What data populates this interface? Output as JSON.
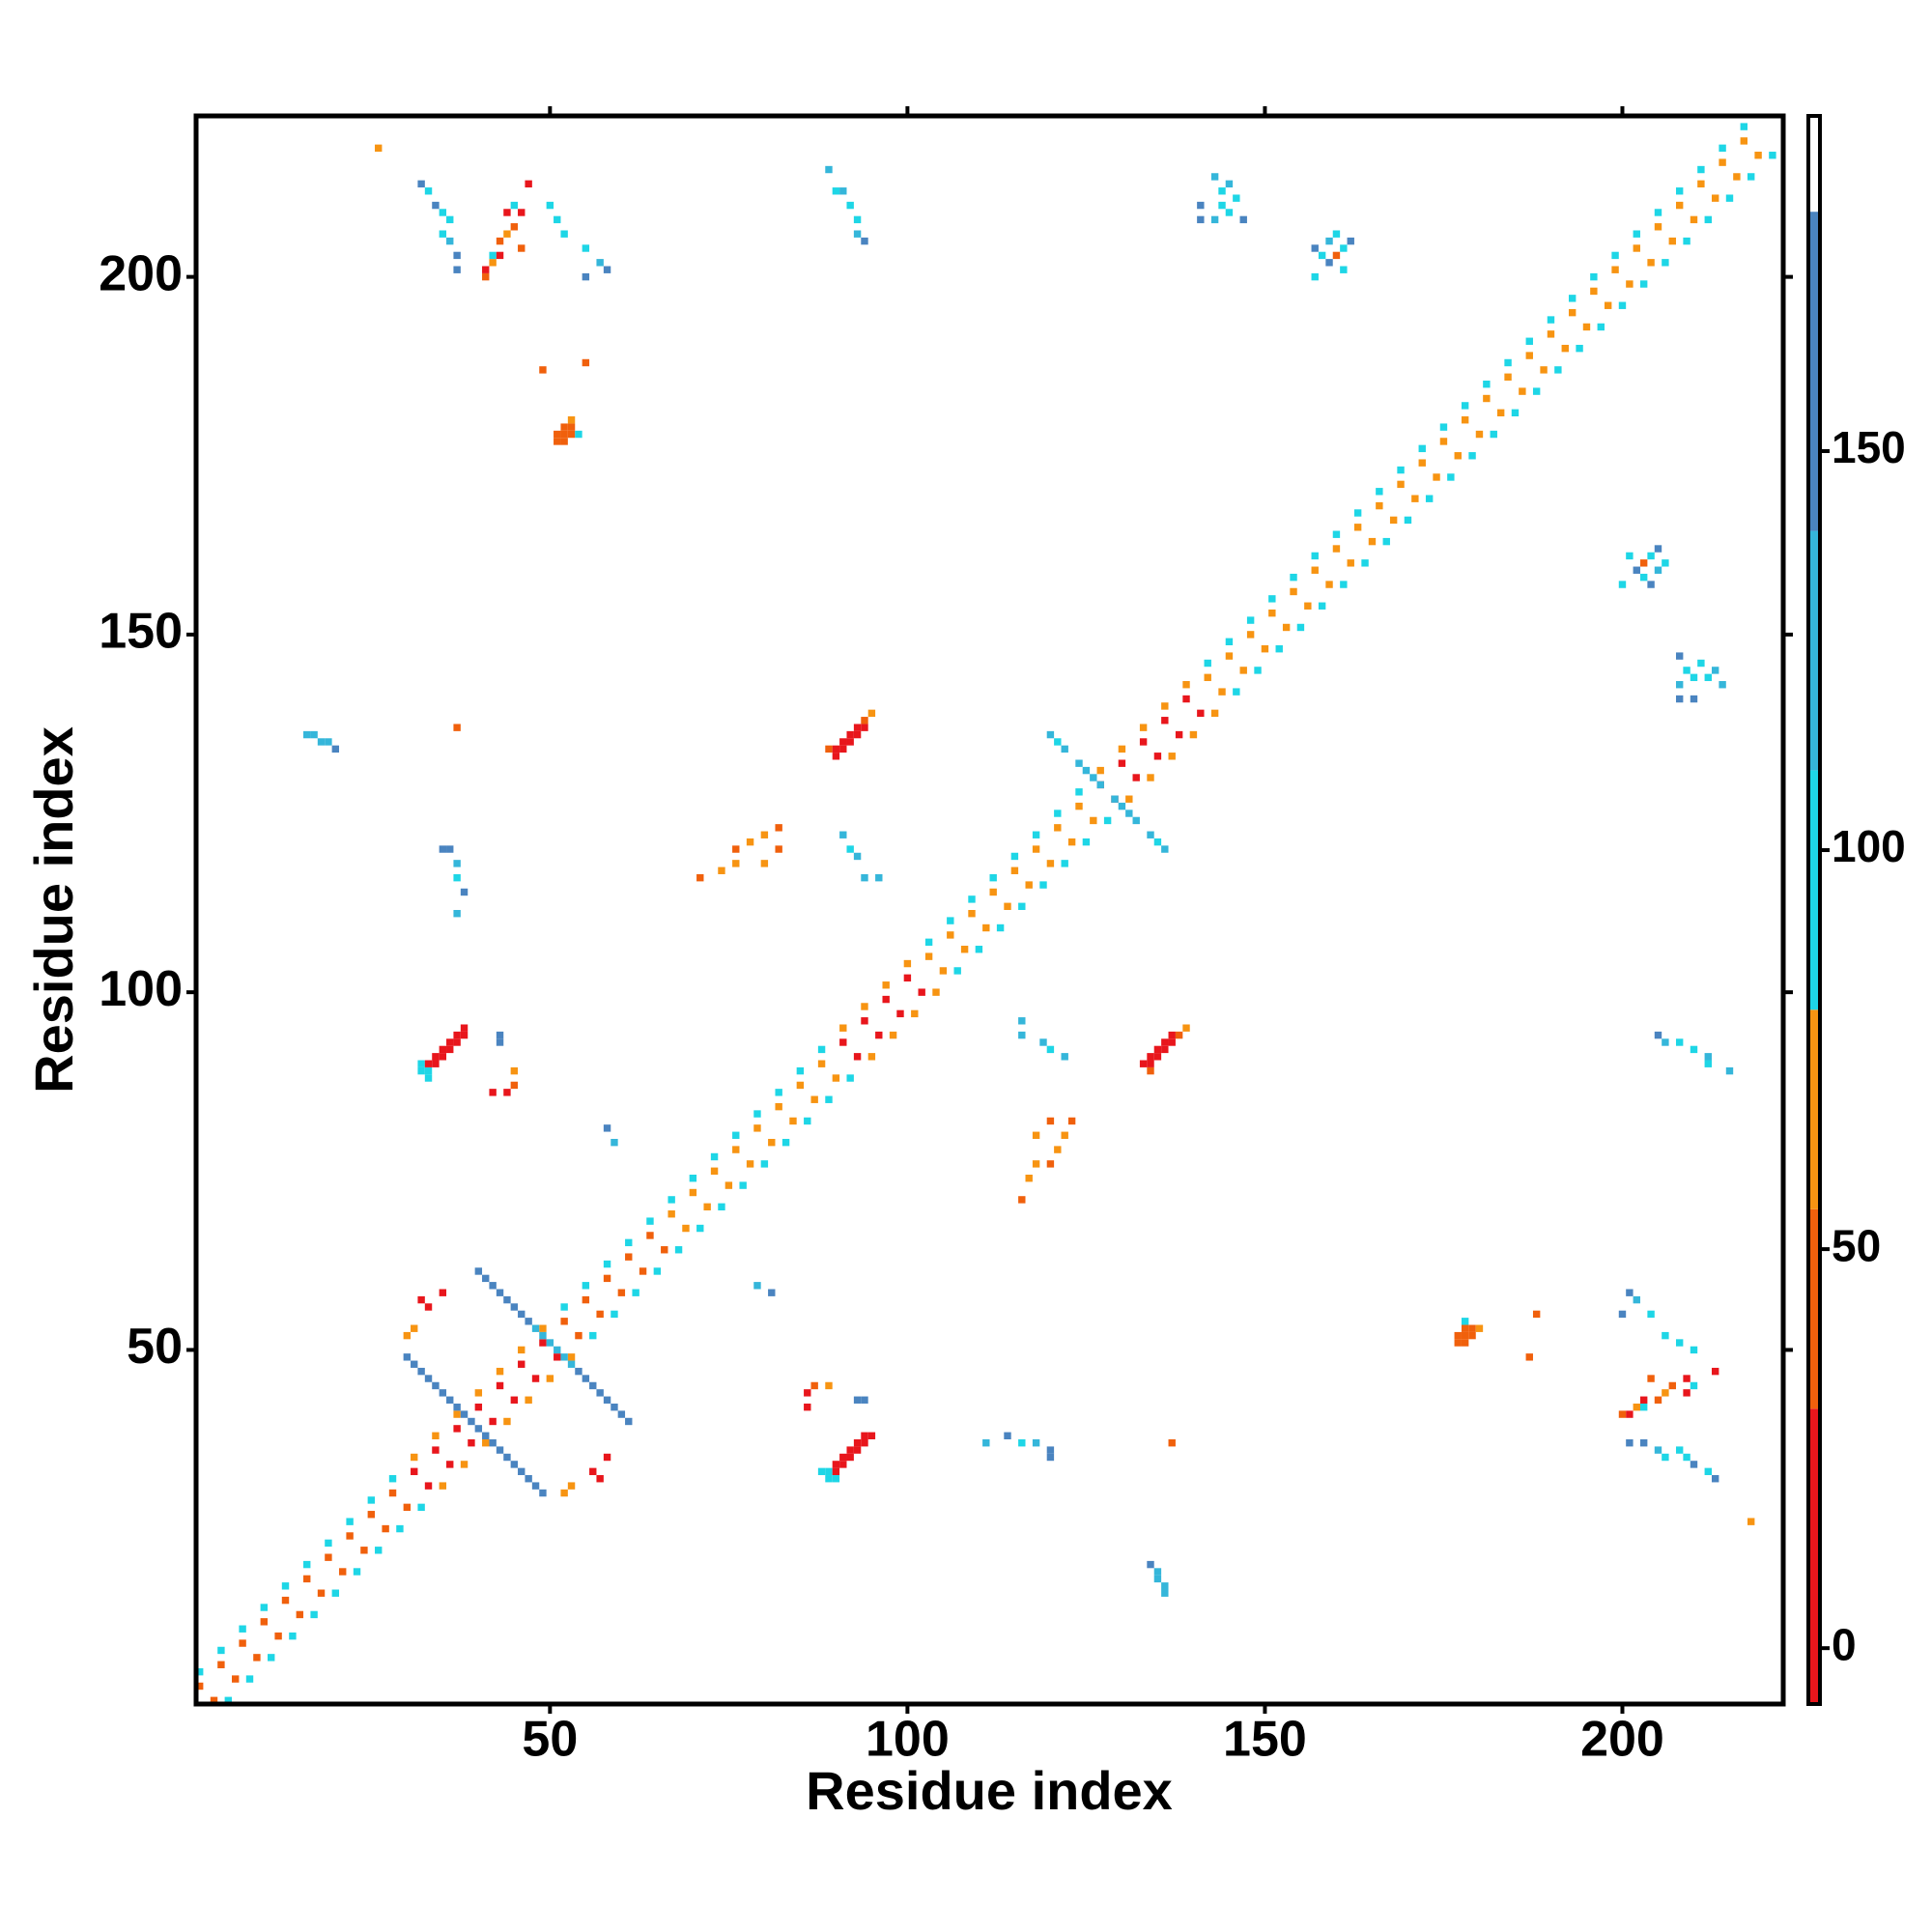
{
  "chart_data": {
    "type": "heatmap",
    "xlabel": "Residue index",
    "ylabel": "Residue index",
    "xlim": [
      0.5,
      222.5
    ],
    "ylim": [
      0.5,
      222.5
    ],
    "xticks": [
      50,
      100,
      150,
      200
    ],
    "yticks": [
      50,
      100,
      150,
      200
    ],
    "symmetric": true,
    "color_bins": [
      -7,
      30,
      55,
      80,
      110,
      140,
      180,
      192
    ],
    "colors": [
      "#e8161c",
      "#f0600c",
      "#f79412",
      "#1ed6e6",
      "#35b6da",
      "#4a84c0",
      "#ffffff"
    ],
    "colorbar_ticks": [
      0,
      50,
      100,
      150
    ],
    "cells": [
      [
        1,
        3,
        50
      ],
      [
        1,
        5,
        90
      ],
      [
        4,
        6,
        50
      ],
      [
        4,
        8,
        90
      ],
      [
        7,
        9,
        50
      ],
      [
        7,
        11,
        90
      ],
      [
        10,
        12,
        50
      ],
      [
        10,
        14,
        90
      ],
      [
        13,
        15,
        50
      ],
      [
        13,
        17,
        90
      ],
      [
        16,
        18,
        50
      ],
      [
        16,
        20,
        90
      ],
      [
        19,
        21,
        50
      ],
      [
        19,
        23,
        90
      ],
      [
        22,
        24,
        50
      ],
      [
        22,
        26,
        90
      ],
      [
        25,
        27,
        50
      ],
      [
        25,
        29,
        90
      ],
      [
        28,
        30,
        50
      ],
      [
        28,
        32,
        90
      ],
      [
        31,
        33,
        15
      ],
      [
        31,
        35,
        60
      ],
      [
        34,
        36,
        15
      ],
      [
        34,
        38,
        60
      ],
      [
        37,
        39,
        15
      ],
      [
        37,
        41,
        60
      ],
      [
        40,
        42,
        15
      ],
      [
        40,
        44,
        60
      ],
      [
        43,
        45,
        15
      ],
      [
        43,
        47,
        60
      ],
      [
        46,
        48,
        15
      ],
      [
        46,
        50,
        60
      ],
      [
        49,
        51,
        15
      ],
      [
        49,
        53,
        60
      ],
      [
        52,
        54,
        50
      ],
      [
        52,
        56,
        95
      ],
      [
        55,
        57,
        50
      ],
      [
        55,
        59,
        95
      ],
      [
        58,
        60,
        50
      ],
      [
        58,
        62,
        95
      ],
      [
        61,
        63,
        50
      ],
      [
        61,
        65,
        95
      ],
      [
        64,
        66,
        50
      ],
      [
        64,
        68,
        95
      ],
      [
        67,
        69,
        60
      ],
      [
        67,
        71,
        90
      ],
      [
        70,
        72,
        60
      ],
      [
        70,
        74,
        90
      ],
      [
        73,
        75,
        60
      ],
      [
        73,
        77,
        90
      ],
      [
        76,
        78,
        60
      ],
      [
        76,
        80,
        90
      ],
      [
        79,
        81,
        60
      ],
      [
        79,
        83,
        90
      ],
      [
        82,
        84,
        60
      ],
      [
        82,
        86,
        90
      ],
      [
        85,
        87,
        60
      ],
      [
        85,
        89,
        90
      ],
      [
        88,
        90,
        60
      ],
      [
        88,
        92,
        90
      ],
      [
        91,
        93,
        15
      ],
      [
        91,
        95,
        70
      ],
      [
        94,
        96,
        15
      ],
      [
        94,
        98,
        70
      ],
      [
        97,
        99,
        15
      ],
      [
        97,
        101,
        70
      ],
      [
        100,
        102,
        15
      ],
      [
        100,
        104,
        70
      ],
      [
        103,
        105,
        55
      ],
      [
        103,
        107,
        92
      ],
      [
        106,
        108,
        55
      ],
      [
        106,
        110,
        92
      ],
      [
        109,
        111,
        55
      ],
      [
        109,
        113,
        92
      ],
      [
        112,
        114,
        55
      ],
      [
        112,
        116,
        92
      ],
      [
        115,
        117,
        55
      ],
      [
        115,
        119,
        92
      ],
      [
        118,
        120,
        55
      ],
      [
        118,
        122,
        92
      ],
      [
        121,
        123,
        55
      ],
      [
        121,
        125,
        92
      ],
      [
        124,
        126,
        55
      ],
      [
        124,
        128,
        92
      ],
      [
        127,
        129,
        20
      ],
      [
        127,
        131,
        65
      ],
      [
        130,
        132,
        20
      ],
      [
        130,
        134,
        65
      ],
      [
        133,
        135,
        20
      ],
      [
        133,
        137,
        65
      ],
      [
        136,
        138,
        20
      ],
      [
        136,
        140,
        65
      ],
      [
        139,
        141,
        20
      ],
      [
        139,
        143,
        65
      ],
      [
        142,
        144,
        55
      ],
      [
        142,
        146,
        95
      ],
      [
        145,
        147,
        55
      ],
      [
        145,
        149,
        95
      ],
      [
        148,
        150,
        55
      ],
      [
        148,
        152,
        95
      ],
      [
        151,
        153,
        55
      ],
      [
        151,
        155,
        95
      ],
      [
        154,
        156,
        55
      ],
      [
        154,
        158,
        95
      ],
      [
        157,
        159,
        55
      ],
      [
        157,
        161,
        95
      ],
      [
        160,
        162,
        55
      ],
      [
        160,
        164,
        95
      ],
      [
        163,
        165,
        55
      ],
      [
        163,
        167,
        95
      ],
      [
        166,
        168,
        55
      ],
      [
        166,
        170,
        95
      ],
      [
        169,
        171,
        55
      ],
      [
        169,
        173,
        95
      ],
      [
        172,
        174,
        55
      ],
      [
        172,
        176,
        95
      ],
      [
        175,
        177,
        55
      ],
      [
        175,
        179,
        95
      ],
      [
        178,
        180,
        55
      ],
      [
        178,
        182,
        92
      ],
      [
        181,
        183,
        55
      ],
      [
        181,
        185,
        92
      ],
      [
        184,
        186,
        55
      ],
      [
        184,
        188,
        92
      ],
      [
        187,
        189,
        55
      ],
      [
        187,
        191,
        92
      ],
      [
        190,
        192,
        55
      ],
      [
        190,
        194,
        92
      ],
      [
        193,
        195,
        55
      ],
      [
        193,
        197,
        92
      ],
      [
        196,
        198,
        55
      ],
      [
        196,
        200,
        92
      ],
      [
        199,
        201,
        55
      ],
      [
        199,
        203,
        92
      ],
      [
        202,
        204,
        55
      ],
      [
        202,
        206,
        92
      ],
      [
        205,
        207,
        55
      ],
      [
        205,
        209,
        92
      ],
      [
        208,
        210,
        55
      ],
      [
        208,
        212,
        92
      ],
      [
        211,
        213,
        55
      ],
      [
        211,
        215,
        92
      ],
      [
        214,
        216,
        55
      ],
      [
        214,
        218,
        92
      ],
      [
        217,
        219,
        55
      ],
      [
        217,
        221,
        92
      ],
      [
        30,
        49,
        150
      ],
      [
        31,
        48,
        150
      ],
      [
        32,
        47,
        150
      ],
      [
        33,
        46,
        150
      ],
      [
        34,
        45,
        150
      ],
      [
        35,
        44,
        150
      ],
      [
        36,
        43,
        150
      ],
      [
        37,
        42,
        150
      ],
      [
        38,
        41,
        140
      ],
      [
        39,
        40,
        140
      ],
      [
        40,
        61,
        150
      ],
      [
        41,
        60,
        150
      ],
      [
        42,
        59,
        150
      ],
      [
        43,
        58,
        150
      ],
      [
        44,
        57,
        150
      ],
      [
        45,
        56,
        150
      ],
      [
        46,
        55,
        150
      ],
      [
        47,
        54,
        140
      ],
      [
        48,
        53,
        130
      ],
      [
        49,
        52,
        120
      ],
      [
        50,
        51,
        120
      ],
      [
        30,
        52,
        55
      ],
      [
        31,
        53,
        60
      ],
      [
        32,
        57,
        15
      ],
      [
        33,
        56,
        20
      ],
      [
        35,
        58,
        10
      ],
      [
        120,
        136,
        120
      ],
      [
        121,
        135,
        100
      ],
      [
        122,
        134,
        120
      ],
      [
        124,
        132,
        130
      ],
      [
        125,
        131,
        120
      ],
      [
        126,
        130,
        110
      ],
      [
        127,
        129,
        120
      ],
      [
        32,
        89,
        90
      ],
      [
        33,
        89,
        90
      ],
      [
        33,
        88,
        95
      ],
      [
        32,
        90,
        90
      ],
      [
        33,
        90,
        10
      ],
      [
        34,
        90,
        10
      ],
      [
        34,
        91,
        5
      ],
      [
        35,
        91,
        10
      ],
      [
        35,
        92,
        5
      ],
      [
        36,
        92,
        10
      ],
      [
        36,
        93,
        10
      ],
      [
        37,
        93,
        15
      ],
      [
        37,
        94,
        15
      ],
      [
        38,
        94,
        20
      ],
      [
        38,
        95,
        20
      ],
      [
        89,
        134,
        40
      ],
      [
        90,
        133,
        10
      ],
      [
        90,
        134,
        10
      ],
      [
        91,
        134,
        10
      ],
      [
        91,
        135,
        5
      ],
      [
        92,
        135,
        10
      ],
      [
        92,
        136,
        10
      ],
      [
        93,
        136,
        10
      ],
      [
        93,
        137,
        15
      ],
      [
        94,
        137,
        20
      ],
      [
        94,
        138,
        40
      ],
      [
        95,
        139,
        60
      ],
      [
        51,
        177,
        45
      ],
      [
        51,
        178,
        40
      ],
      [
        52,
        177,
        40
      ],
      [
        52,
        178,
        45
      ],
      [
        52,
        179,
        50
      ],
      [
        53,
        178,
        50
      ],
      [
        53,
        179,
        45
      ],
      [
        53,
        180,
        60
      ],
      [
        54,
        178,
        90
      ],
      [
        49,
        187,
        30
      ],
      [
        41,
        200,
        40
      ],
      [
        41,
        201,
        10
      ],
      [
        42,
        202,
        60
      ],
      [
        42,
        203,
        90
      ],
      [
        43,
        203,
        10
      ],
      [
        43,
        205,
        40
      ],
      [
        44,
        206,
        60
      ],
      [
        45,
        207,
        50
      ],
      [
        44,
        209,
        10
      ],
      [
        46,
        209,
        10
      ],
      [
        45,
        210,
        90
      ],
      [
        47,
        213,
        20
      ],
      [
        46,
        204,
        50
      ],
      [
        32,
        213,
        140
      ],
      [
        33,
        212,
        100
      ],
      [
        34,
        210,
        140
      ],
      [
        35,
        209,
        90
      ],
      [
        36,
        208,
        100
      ],
      [
        35,
        206,
        100
      ],
      [
        36,
        205,
        130
      ],
      [
        37,
        203,
        140
      ],
      [
        37,
        201,
        150
      ],
      [
        50,
        210,
        95
      ],
      [
        51,
        208,
        95
      ],
      [
        52,
        206,
        100
      ],
      [
        55,
        204,
        100
      ],
      [
        57,
        202,
        130
      ],
      [
        58,
        201,
        140
      ],
      [
        55,
        200,
        150
      ],
      [
        89,
        215,
        130
      ],
      [
        90,
        212,
        100
      ],
      [
        91,
        212,
        120
      ],
      [
        92,
        210,
        100
      ],
      [
        93,
        208,
        95
      ],
      [
        93,
        206,
        130
      ],
      [
        94,
        205,
        140
      ],
      [
        141,
        210,
        140
      ],
      [
        141,
        208,
        150
      ],
      [
        143,
        208,
        120
      ],
      [
        143,
        214,
        120
      ],
      [
        144,
        210,
        100
      ],
      [
        144,
        212,
        95
      ],
      [
        145,
        213,
        110
      ],
      [
        145,
        209,
        90
      ],
      [
        146,
        211,
        95
      ],
      [
        147,
        208,
        140
      ],
      [
        157,
        204,
        140
      ],
      [
        157,
        200,
        100
      ],
      [
        158,
        203,
        100
      ],
      [
        159,
        202,
        150
      ],
      [
        159,
        205,
        130
      ],
      [
        160,
        203,
        40
      ],
      [
        160,
        206,
        95
      ],
      [
        161,
        204,
        100
      ],
      [
        161,
        201,
        95
      ],
      [
        162,
        205,
        150
      ],
      [
        16,
        136,
        120
      ],
      [
        17,
        136,
        120
      ],
      [
        18,
        135,
        110
      ],
      [
        19,
        135,
        120
      ],
      [
        20,
        134,
        140
      ],
      [
        35,
        120,
        140
      ],
      [
        36,
        120,
        140
      ],
      [
        37,
        118,
        130
      ],
      [
        37,
        116,
        100
      ],
      [
        38,
        114,
        140
      ],
      [
        37,
        111,
        130
      ],
      [
        71,
        116,
        50
      ],
      [
        74,
        117,
        60
      ],
      [
        76,
        118,
        55
      ],
      [
        76,
        120,
        45
      ],
      [
        78,
        121,
        55
      ],
      [
        80,
        122,
        60
      ],
      [
        82,
        120,
        45
      ],
      [
        82,
        123,
        50
      ],
      [
        80,
        118,
        60
      ],
      [
        91,
        122,
        120
      ],
      [
        92,
        120,
        100
      ],
      [
        93,
        119,
        130
      ],
      [
        94,
        116,
        110
      ],
      [
        96,
        116,
        130
      ],
      [
        43,
        94,
        140
      ],
      [
        43,
        93,
        140
      ],
      [
        45,
        89,
        60
      ],
      [
        45,
        87,
        40
      ],
      [
        44,
        86,
        20
      ],
      [
        42,
        86,
        20
      ],
      [
        58,
        81,
        140
      ],
      [
        59,
        79,
        130
      ],
      [
        55,
        188,
        40
      ],
      [
        37,
        137,
        50
      ],
      [
        26,
        218,
        55
      ]
    ]
  }
}
